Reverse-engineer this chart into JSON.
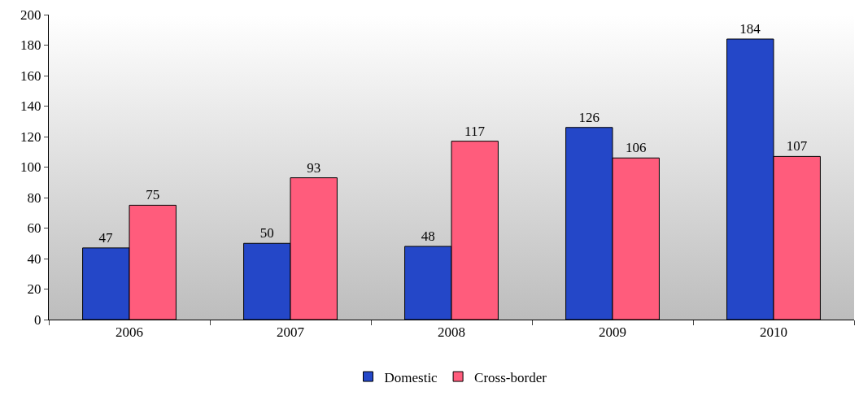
{
  "chart_data": {
    "type": "bar",
    "categories": [
      "2006",
      "2007",
      "2008",
      "2009",
      "2010"
    ],
    "series": [
      {
        "name": "Domestic",
        "color": "#2447c8",
        "values": [
          47,
          50,
          48,
          126,
          184
        ]
      },
      {
        "name": "Cross-border",
        "color": "#ff5c7c",
        "values": [
          75,
          93,
          117,
          106,
          107
        ]
      }
    ],
    "ylim": [
      0,
      200
    ],
    "yticks": [
      0,
      20,
      40,
      60,
      80,
      100,
      120,
      140,
      160,
      180,
      200
    ],
    "grid": false,
    "legend": "bottom",
    "data_labels": true
  }
}
